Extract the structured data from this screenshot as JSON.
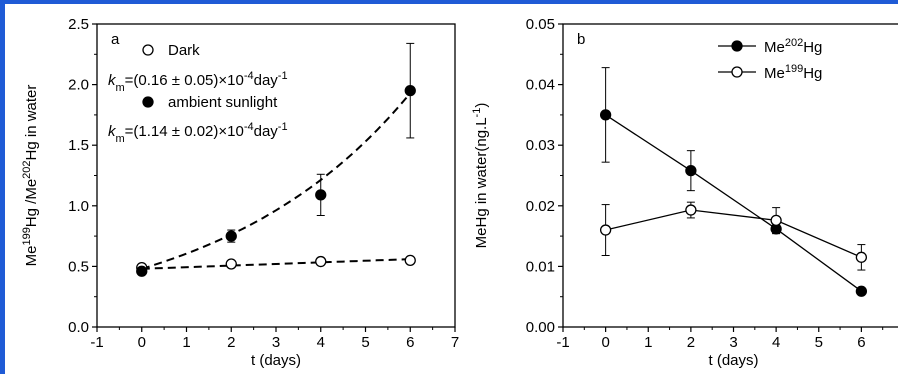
{
  "chart_data": [
    {
      "type": "scatter",
      "panel_label": "a",
      "xlabel": "t (days)",
      "ylabel_parts": [
        "Me",
        "199",
        "Hg /Me",
        "202",
        "Hg in  water"
      ],
      "xlim": [
        -1,
        7
      ],
      "ylim": [
        0.0,
        2.5
      ],
      "xticks": [
        -1,
        0,
        1,
        2,
        3,
        4,
        5,
        6,
        7
      ],
      "yticks": [
        "0.0",
        "0.5",
        "1.0",
        "1.5",
        "2.0",
        "2.5"
      ],
      "legend": [
        {
          "marker": "open",
          "label": "Dark",
          "rate": [
            "k",
            "m",
            "=(0.16 ± 0.05)×10",
            "-4",
            "day",
            "-1"
          ]
        },
        {
          "marker": "filled",
          "label": "ambient sunlight",
          "rate": [
            "k",
            "m",
            "=(1.14 ± 0.02)×10",
            "-4",
            "day",
            "-1"
          ]
        }
      ],
      "series": [
        {
          "name": "Dark",
          "marker": "open",
          "x": [
            0,
            2,
            4,
            6
          ],
          "y": [
            0.49,
            0.52,
            0.54,
            0.55
          ],
          "err": [
            0.02,
            0.02,
            0.02,
            0.02
          ]
        },
        {
          "name": "ambient sunlight",
          "marker": "filled",
          "x": [
            0,
            2,
            4,
            6
          ],
          "y": [
            0.46,
            0.75,
            1.09,
            1.95
          ],
          "err": [
            0.02,
            0.05,
            0.17,
            0.39
          ]
        }
      ],
      "fits": [
        {
          "x": [
            0,
            6
          ],
          "y": [
            0.48,
            0.56
          ],
          "curve": "linear"
        },
        {
          "x": [
            0,
            6
          ],
          "y": [
            0.48,
            1.93
          ],
          "curve": "exponential"
        }
      ]
    },
    {
      "type": "line",
      "panel_label": "b",
      "xlabel": "t (days)",
      "ylabel_parts": [
        "MeHg in  water(ng.L",
        "-1",
        ")"
      ],
      "xlim": [
        -1,
        7
      ],
      "ylim": [
        0.0,
        0.05
      ],
      "xticks": [
        -1,
        0,
        1,
        2,
        3,
        4,
        5,
        6
      ],
      "yticks": [
        "0.00",
        "0.01",
        "0.02",
        "0.03",
        "0.04",
        "0.05"
      ],
      "legend": [
        {
          "marker": "filled",
          "label": [
            "Me",
            "202",
            "Hg"
          ]
        },
        {
          "marker": "open",
          "label": [
            "Me",
            "199",
            "Hg"
          ]
        }
      ],
      "series": [
        {
          "name": "Me202Hg",
          "marker": "filled",
          "x": [
            0,
            2,
            4,
            6
          ],
          "y": [
            0.035,
            0.0258,
            0.0162,
            0.0059
          ],
          "err": [
            0.0078,
            0.0033,
            0.0008,
            0.0004
          ]
        },
        {
          "name": "Me199Hg",
          "marker": "open",
          "x": [
            0,
            2,
            4,
            6
          ],
          "y": [
            0.016,
            0.0193,
            0.0176,
            0.0115
          ],
          "err": [
            0.0042,
            0.0013,
            0.0021,
            0.0021
          ]
        }
      ]
    }
  ]
}
